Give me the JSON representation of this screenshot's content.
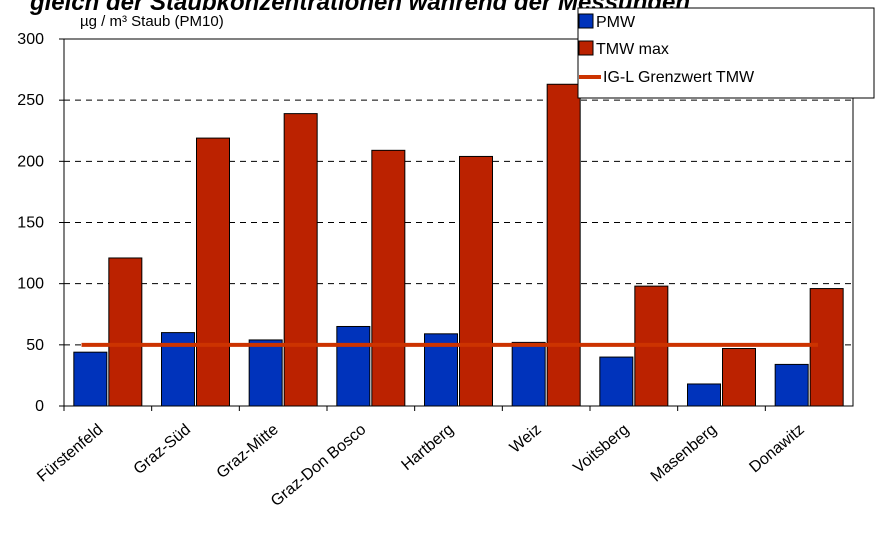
{
  "chart_data": {
    "type": "bar",
    "title": "gleich der Staubkonzentrationen während der Messungen",
    "ylabel": "µg / m³ Staub (PM10)",
    "ylim": [
      0,
      300
    ],
    "yticks": [
      0,
      50,
      100,
      150,
      200,
      250,
      300
    ],
    "grid": true,
    "legend_position": "top-right",
    "categories": [
      "Fürstenfeld",
      "Graz-Süd",
      "Graz-Mitte",
      "Graz-Don Bosco",
      "Hartberg",
      "Weiz",
      "Voitsberg",
      "Masenberg",
      "Donawitz"
    ],
    "series": [
      {
        "name": "PMW",
        "color": "#0033bb",
        "values": [
          44,
          60,
          54,
          65,
          59,
          52,
          40,
          18,
          34
        ]
      },
      {
        "name": "TMW max",
        "color": "#bb2200",
        "values": [
          121,
          219,
          239,
          209,
          204,
          263,
          98,
          47,
          96
        ]
      }
    ],
    "reference_line": {
      "name": "IG-L Grenzwert TMW",
      "value": 50,
      "color": "#cc3300"
    }
  }
}
